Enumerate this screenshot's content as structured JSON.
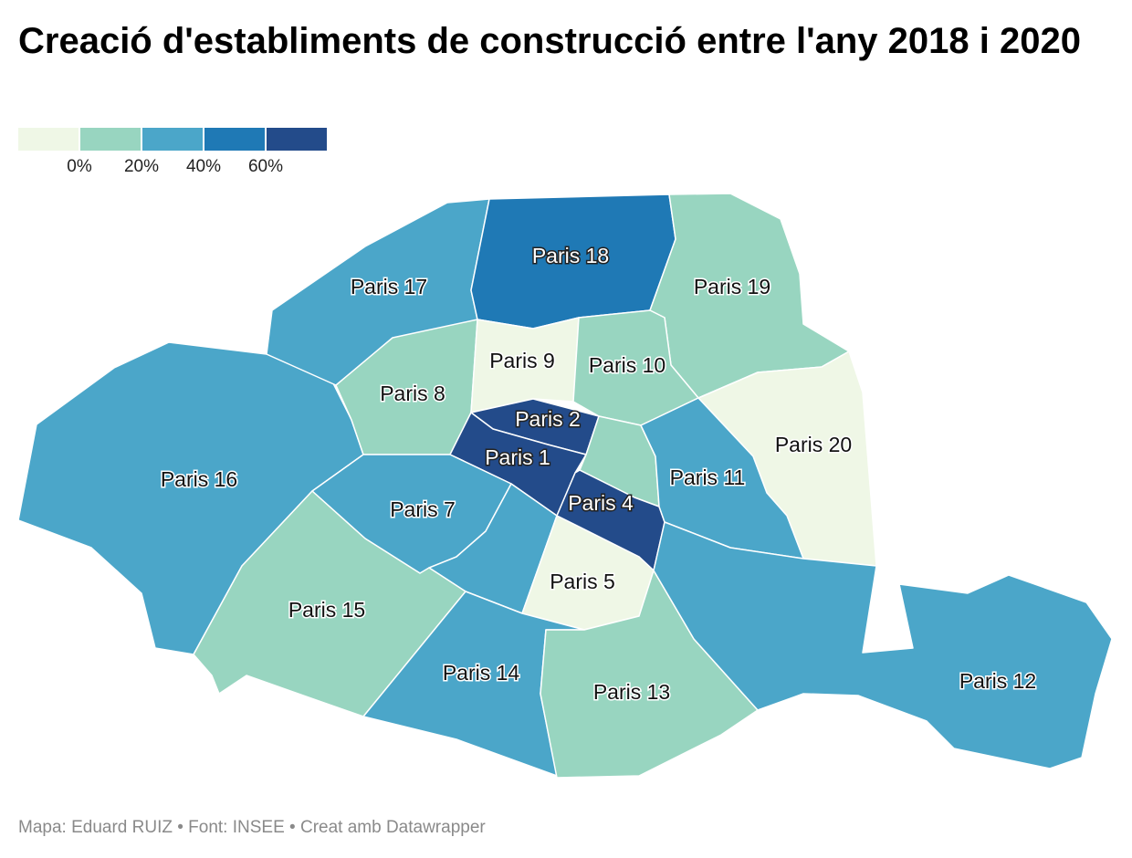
{
  "title": "Creació d'establiments de construcció entre l'any 2018 i 2020",
  "legend": {
    "colors": [
      "#eff7e6",
      "#98d5c0",
      "#4ba6c9",
      "#1f79b5",
      "#234b8a"
    ],
    "ticks": [
      "0%",
      "20%",
      "40%",
      "60%"
    ]
  },
  "districts": [
    {
      "id": "paris-16",
      "label": "Paris 16",
      "color_class": 2
    },
    {
      "id": "paris-17",
      "label": "Paris 17",
      "color_class": 2
    },
    {
      "id": "paris-18",
      "label": "Paris 18",
      "color_class": 3
    },
    {
      "id": "paris-19",
      "label": "Paris 19",
      "color_class": 1
    },
    {
      "id": "paris-20",
      "label": "Paris 20",
      "color_class": 0
    },
    {
      "id": "paris-8",
      "label": "Paris 8",
      "color_class": 1
    },
    {
      "id": "paris-9",
      "label": "Paris 9",
      "color_class": 0
    },
    {
      "id": "paris-10",
      "label": "Paris 10",
      "color_class": 1
    },
    {
      "id": "paris-2",
      "label": "Paris 2",
      "color_class": 4
    },
    {
      "id": "paris-1",
      "label": "Paris 1",
      "color_class": 4
    },
    {
      "id": "paris-3",
      "label": "",
      "color_class": 1
    },
    {
      "id": "paris-4",
      "label": "Paris 4",
      "color_class": 4
    },
    {
      "id": "paris-11",
      "label": "Paris 11",
      "color_class": 2
    },
    {
      "id": "paris-7",
      "label": "Paris 7",
      "color_class": 2
    },
    {
      "id": "paris-6",
      "label": "",
      "color_class": 2
    },
    {
      "id": "paris-5",
      "label": "Paris 5",
      "color_class": 0
    },
    {
      "id": "paris-15",
      "label": "Paris 15",
      "color_class": 1
    },
    {
      "id": "paris-14",
      "label": "Paris 14",
      "color_class": 2
    },
    {
      "id": "paris-13",
      "label": "Paris 13",
      "color_class": 1
    },
    {
      "id": "paris-12",
      "label": "Paris 12",
      "color_class": 2
    }
  ],
  "footer": "Mapa: Eduard RUIZ • Font: INSEE • Creat amb Datawrapper"
}
